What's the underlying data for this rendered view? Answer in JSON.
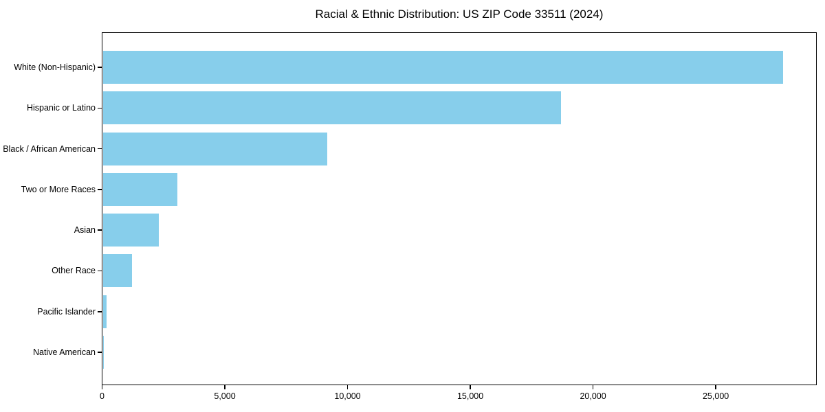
{
  "chart_data": {
    "type": "bar",
    "orientation": "horizontal",
    "title": "Racial & Ethnic Distribution: US ZIP Code 33511 (2024)",
    "xlabel": "",
    "ylabel": "",
    "categories": [
      "White (Non-Hispanic)",
      "Hispanic or Latino",
      "Black / African American",
      "Two or More Races",
      "Asian",
      "Other Race",
      "Pacific Islander",
      "Native American"
    ],
    "values": [
      27700,
      18650,
      9140,
      3020,
      2270,
      1170,
      140,
      25
    ],
    "xlim": [
      0,
      29100
    ],
    "xticks": [
      0,
      5000,
      10000,
      15000,
      20000,
      25000
    ],
    "xtick_labels": [
      "0",
      "5,000",
      "10,000",
      "15,000",
      "20,000",
      "25,000"
    ],
    "grid": false,
    "legend": "none",
    "bar_color": "#87CEEB",
    "axis_color": "#000000",
    "text_color": "#000000",
    "background": "#ffffff"
  }
}
